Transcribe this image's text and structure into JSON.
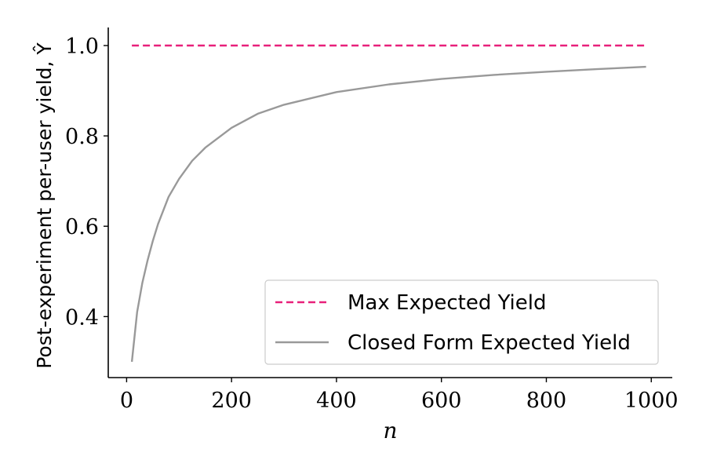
{
  "chart_data": {
    "type": "line",
    "xlabel": "n",
    "ylabel": "Post-experiment per-user yield, Ŷ",
    "xlim": [
      -35,
      1040
    ],
    "ylim": [
      0.265,
      1.04
    ],
    "xticks": [
      0,
      200,
      400,
      600,
      800,
      1000
    ],
    "xtick_labels": [
      "0",
      "200",
      "400",
      "600",
      "800",
      "1000"
    ],
    "yticks": [
      0.4,
      0.6,
      0.8,
      1.0
    ],
    "ytick_labels": [
      "0.4",
      "0.6",
      "0.8",
      "1.0"
    ],
    "grid": false,
    "legend_position": "lower-right",
    "series": [
      {
        "name": "Max Expected Yield",
        "style": "dashed",
        "color": "#e8207a",
        "x": [
          10,
          990
        ],
        "y": [
          1.0,
          1.0
        ]
      },
      {
        "name": "Closed Form Expected Yield",
        "style": "solid",
        "color": "#999999",
        "x": [
          10,
          20,
          30,
          40,
          50,
          60,
          80,
          100,
          125,
          150,
          200,
          250,
          300,
          400,
          500,
          600,
          700,
          800,
          900,
          990
        ],
        "y": [
          0.3,
          0.41,
          0.475,
          0.525,
          0.568,
          0.605,
          0.665,
          0.705,
          0.745,
          0.774,
          0.818,
          0.849,
          0.869,
          0.897,
          0.914,
          0.926,
          0.935,
          0.942,
          0.948,
          0.953
        ]
      }
    ]
  }
}
